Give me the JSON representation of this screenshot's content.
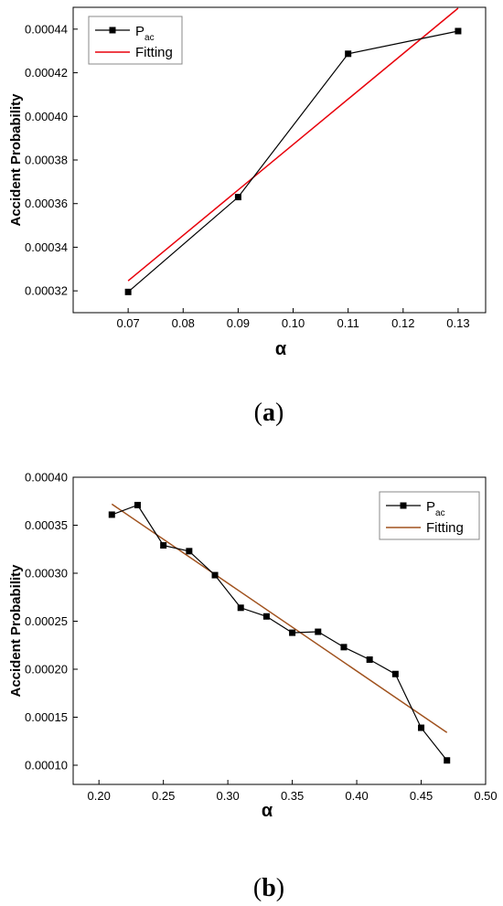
{
  "chart_data": [
    {
      "type": "line",
      "panel_label": {
        "open": "(",
        "letter": "a",
        "close": ")"
      },
      "xlabel": "α",
      "ylabel": "Accident Probability",
      "xlim": [
        0.06,
        0.135
      ],
      "ylim": [
        0.00031,
        0.00045
      ],
      "x_ticks": [
        0.07,
        0.08,
        0.09,
        0.1,
        0.11,
        0.12,
        0.13
      ],
      "x_tick_labels": [
        "0.07",
        "0.08",
        "0.09",
        "0.10",
        "0.11",
        "0.12",
        "0.13"
      ],
      "y_ticks": [
        0.00032,
        0.00034,
        0.00036,
        0.00038,
        0.0004,
        0.00042,
        0.00044
      ],
      "y_tick_labels": [
        "0.00032",
        "0.00034",
        "0.00036",
        "0.00038",
        "0.00040",
        "0.00042",
        "0.00044"
      ],
      "legend": {
        "placement": "top-left",
        "main": "P",
        "sub": "ac",
        "fit": "Fitting"
      },
      "series": [
        {
          "name": "Pac",
          "color": "#000000",
          "marker": "square",
          "x": [
            0.07,
            0.09,
            0.11,
            0.13
          ],
          "y": [
            0.0003195,
            0.000363,
            0.0004287,
            0.0004391
          ]
        },
        {
          "name": "Fitting",
          "color": "#e8000b",
          "marker": "none",
          "x": [
            0.07,
            0.13
          ],
          "y": [
            0.0003246,
            0.0004496
          ]
        }
      ]
    },
    {
      "type": "line",
      "panel_label": {
        "open": "(",
        "letter": "b",
        "close": ")"
      },
      "xlabel": "α",
      "ylabel": "Accident Probability",
      "xlim": [
        0.18,
        0.5
      ],
      "ylim": [
        8e-05,
        0.0004
      ],
      "x_ticks": [
        0.2,
        0.25,
        0.3,
        0.35,
        0.4,
        0.45,
        0.5
      ],
      "x_tick_labels": [
        "0.20",
        "0.25",
        "0.30",
        "0.35",
        "0.40",
        "0.45",
        "0.50"
      ],
      "y_ticks": [
        0.0001,
        0.00015,
        0.0002,
        0.00025,
        0.0003,
        0.00035,
        0.0004
      ],
      "y_tick_labels": [
        "0.00010",
        "0.00015",
        "0.00020",
        "0.00025",
        "0.00030",
        "0.00035",
        "0.00040"
      ],
      "legend": {
        "placement": "top-right",
        "main": "P",
        "sub": "ac",
        "fit": "Fitting"
      },
      "series": [
        {
          "name": "Pac",
          "color": "#000000",
          "marker": "square",
          "x": [
            0.21,
            0.23,
            0.25,
            0.27,
            0.29,
            0.31,
            0.33,
            0.35,
            0.37,
            0.39,
            0.41,
            0.43,
            0.45,
            0.47
          ],
          "y": [
            0.000361,
            0.000371,
            0.000329,
            0.000323,
            0.000298,
            0.000264,
            0.000255,
            0.000238,
            0.000239,
            0.000223,
            0.00021,
            0.000195,
            0.000139,
            0.000105
          ]
        },
        {
          "name": "Fitting",
          "color": "#a0521e",
          "marker": "none",
          "x": [
            0.21,
            0.47
          ],
          "y": [
            0.000372,
            0.000134
          ]
        }
      ]
    }
  ]
}
